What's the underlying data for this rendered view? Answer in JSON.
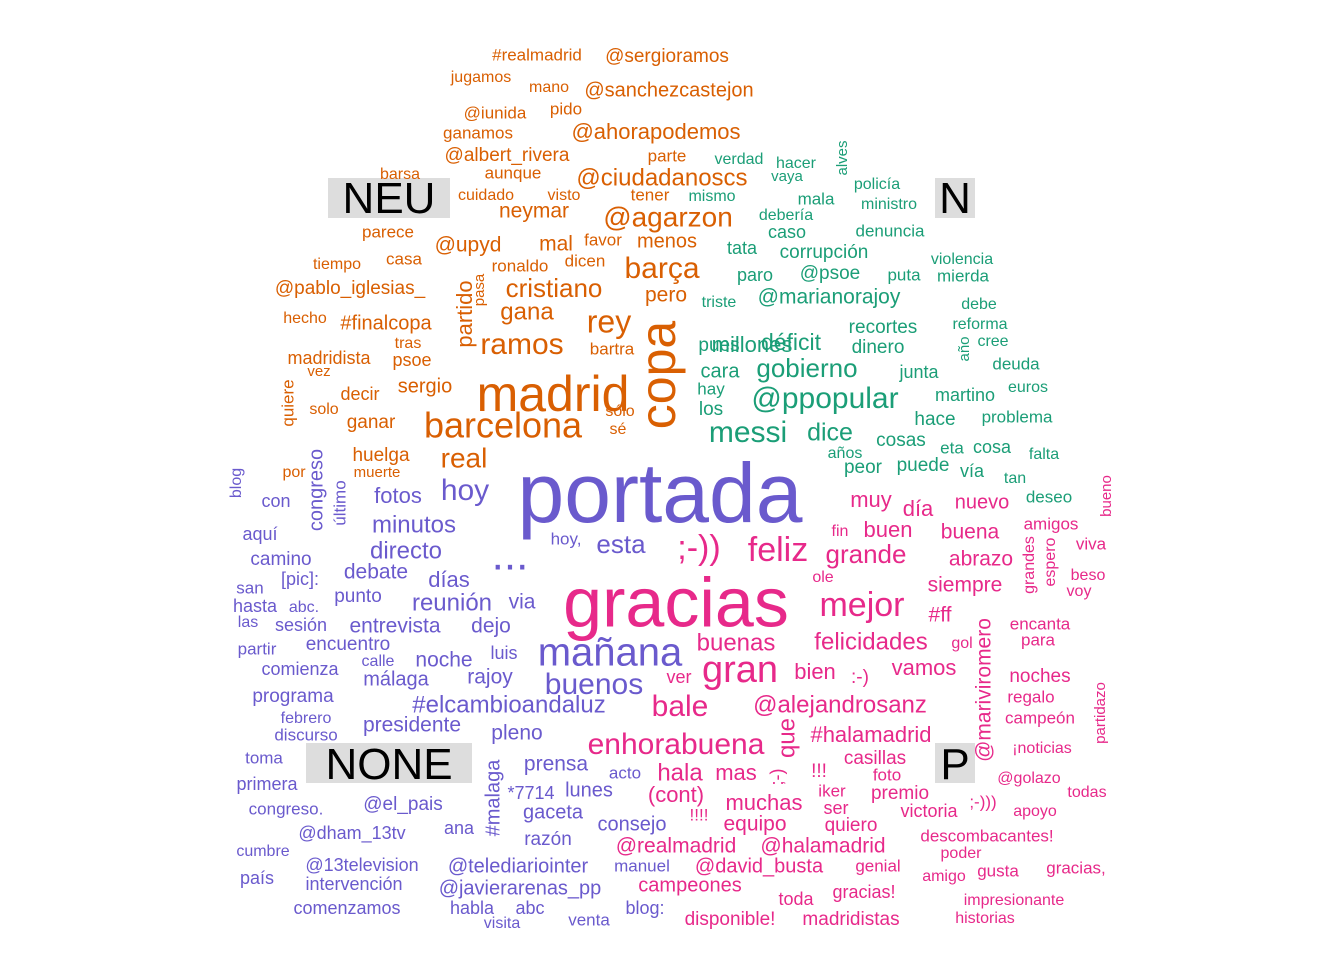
{
  "chart_data": {
    "type": "comparison-wordcloud",
    "title": "",
    "groups": [
      {
        "name": "NEU",
        "color": "#D95F02"
      },
      {
        "name": "N",
        "color": "#1B9E77"
      },
      {
        "name": "NONE",
        "color": "#6A5ACD"
      },
      {
        "name": "P",
        "color": "#E7298A"
      }
    ],
    "label_bg": "#DDDDDD",
    "words": {
      "NEU": [
        "madrid",
        "copa",
        "barcelona",
        "rey",
        "ramos",
        "barça",
        "@agarzon",
        "cristiano",
        "real",
        "gana",
        "@ciudadanoscs",
        "@ahorapodemos",
        "@sanchezcastejon",
        "@sergioramos",
        "neymar",
        "mal",
        "menos",
        "pero",
        "partido",
        "@upyd",
        "@albert_rivera",
        "#finalcopa",
        "sergio",
        "huelga",
        "@pablo_iglesias_",
        "madridista",
        "psoe",
        "ganar",
        "decir",
        "#realmadrid",
        "jugamos",
        "mano",
        "pido",
        "@iunida",
        "ganamos",
        "parte",
        "aunque",
        "barsa",
        "cuidado",
        "visto",
        "tener",
        "parece",
        "casa",
        "favor",
        "dicen",
        "ronaldo",
        "pasa",
        "tiempo",
        "hecho",
        "tras",
        "vez",
        "bartra",
        "quiere",
        "solo",
        "sólo",
        "sé",
        "muerte",
        "por"
      ],
      "N": [
        "@ppopular",
        "messi",
        "gobierno",
        "dice",
        "millones",
        "déficit",
        "@marianorajoy",
        "@psoe",
        "corrupción",
        "caso",
        "tata",
        "paro",
        "recortes",
        "dinero",
        "pues",
        "cara",
        "hay",
        "los",
        "junta",
        "hace",
        "cosas",
        "peor",
        "puede",
        "años",
        "eta",
        "cosa",
        "vía",
        "tan",
        "falta",
        "deseo",
        "problema",
        "martino",
        "euros",
        "deuda",
        "año",
        "cree",
        "reforma",
        "debe",
        "mierda",
        "violencia",
        "puta",
        "denuncia",
        "ministro",
        "policía",
        "alves",
        "mala",
        "mismo",
        "vaya",
        "hacer",
        "verdad",
        "debería",
        "triste"
      ],
      "NONE": [
        "portada",
        "...",
        "mañana",
        "hoy",
        "buenos",
        "minutos",
        "directo",
        "fotos",
        "días",
        "reunión",
        "debate",
        "entrevista",
        "dejo",
        "noche",
        "rajoy",
        "#elcambioandaluz",
        "presidente",
        "pleno",
        "prensa",
        "via",
        "luis",
        "málaga",
        "esta",
        "hoy,",
        "congreso",
        "último",
        "con",
        "blog",
        "aquí",
        "camino",
        "[pic]:",
        "punto",
        "san",
        "hasta",
        "abc.",
        "las",
        "sesión",
        "partir",
        "encuentro",
        "calle",
        "comienza",
        "programa",
        "febrero",
        "discurso",
        "toma",
        "primera",
        "congreso.",
        "@el_pais",
        "@dham_13tv",
        "cumbre",
        "país",
        "@13television",
        "intervención",
        "comenzamos",
        "@telediariointer",
        "@javierarenas_pp",
        "habla",
        "abc",
        "visita",
        "venta",
        "manuel",
        "blog:",
        "razón",
        "ana",
        "#malaga",
        "gaceta",
        "consejo",
        "lunes",
        "acto",
        "*7714"
      ],
      "P": [
        "gracias",
        "gran",
        "mejor",
        "feliz",
        ";-))",
        "grande",
        "bale",
        "enhorabuena",
        "buenas",
        "felicidades",
        "@alejandrosanz",
        "buenos",
        "muy",
        "día",
        "nuevo",
        "buen",
        "buena",
        "abrazo",
        "siempre",
        "#ff",
        "bien",
        "vamos",
        "hala",
        "mas",
        "que",
        "muchas",
        "@halamadrid",
        "@realmadrid",
        "#halamadrid",
        "casillas",
        "premio",
        "equipo",
        "@david_busta",
        "campeones",
        "disponible!",
        "madridistas",
        "gracias!",
        "toda",
        "quiero",
        "victoria",
        "ser",
        "iker",
        "foto",
        ";-)",
        "!!!",
        "!!!!",
        "(cont)",
        "ver",
        ":-)",
        "ole",
        "fin",
        "@mariviromero",
        "amigos",
        "espero",
        "grandes",
        "viva",
        "beso",
        "voy",
        "encanta",
        "para",
        "gol",
        "noches",
        "regalo",
        "campeón",
        "¡noticias",
        "partidazo",
        "@golazo",
        "todas",
        "apoyo",
        "descombacantes!",
        "poder",
        "amigo",
        "gusta",
        "gracias,",
        "genial",
        "impresionante",
        "historias",
        "bueno",
        ";-)))"
      ]
    }
  }
}
